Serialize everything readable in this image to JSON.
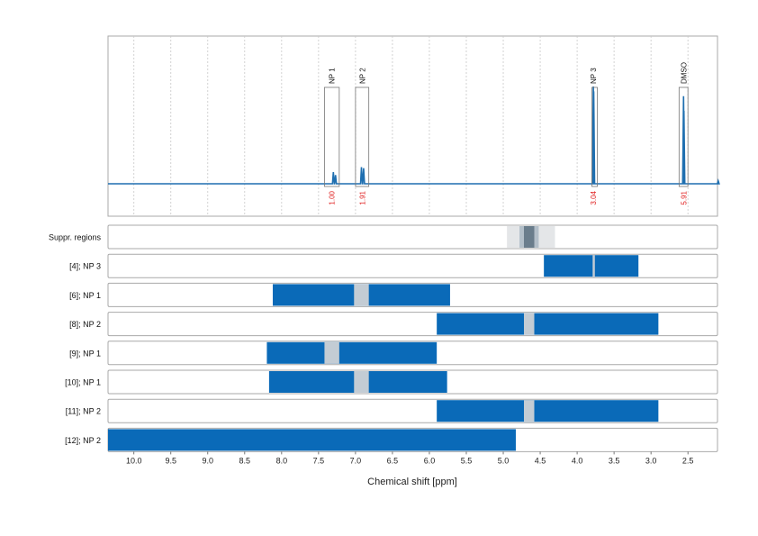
{
  "chart_data": {
    "type": "line",
    "x_axis": {
      "label": "Chemical shift [ppm]",
      "range": [
        10.35,
        2.1
      ],
      "reversed": true,
      "ticks": [
        "10.0",
        "9.5",
        "9.0",
        "8.5",
        "8.0",
        "7.5",
        "7.0",
        "6.5",
        "6.0",
        "5.5",
        "5.0",
        "4.5",
        "4.0",
        "3.5",
        "3.0",
        "2.5"
      ],
      "grid": "dotted vertical"
    },
    "spectrum": {
      "color": "#1f6fb0",
      "baseline": 0.0,
      "peaks": [
        {
          "x": 7.3,
          "height": 0.12
        },
        {
          "x": 7.27,
          "height": 0.09
        },
        {
          "x": 6.92,
          "height": 0.17
        },
        {
          "x": 6.89,
          "height": 0.16
        },
        {
          "x": 3.78,
          "height": 1.0
        },
        {
          "x": 3.775,
          "height": 0.95
        },
        {
          "x": 2.56,
          "height": 0.9
        },
        {
          "x": 2.555,
          "height": 0.75
        },
        {
          "x": 2.09,
          "height": 0.03
        }
      ]
    },
    "annotations": [
      {
        "label": "NP 1",
        "x_from": 7.42,
        "x_to": 7.22,
        "integral": "1.00"
      },
      {
        "label": "NP 2",
        "x_from": 7.0,
        "x_to": 6.82,
        "integral": "1.91"
      },
      {
        "label": "NP 3",
        "x_from": 3.8,
        "x_to": 3.76,
        "integral": "3.04"
      },
      {
        "label": "DMSO",
        "x_from": 2.62,
        "x_to": 2.5,
        "integral": "5.91"
      }
    ],
    "region_rows": [
      {
        "label": "Suppr. regions",
        "type": "suppression",
        "bands": [
          {
            "from": 4.95,
            "to": 4.3,
            "shade": "#e4e6e8"
          },
          {
            "from": 4.78,
            "to": 4.52,
            "shade": "#b3bfc9"
          },
          {
            "from": 4.72,
            "to": 4.58,
            "shade": "#6a7d8c"
          }
        ]
      },
      {
        "label": "[4]; NP 3",
        "segments": [
          [
            4.45,
            3.17
          ]
        ],
        "gaps": [
          [
            3.79,
            3.76
          ]
        ]
      },
      {
        "label": "[6]; NP 1",
        "segments": [
          [
            8.12,
            5.72
          ]
        ],
        "gaps": [
          [
            7.02,
            6.82
          ]
        ]
      },
      {
        "label": "[8]; NP 2",
        "segments": [
          [
            5.9,
            2.9
          ]
        ],
        "gaps": [
          [
            4.72,
            4.58
          ]
        ]
      },
      {
        "label": "[9]; NP 1",
        "segments": [
          [
            8.2,
            5.9
          ]
        ],
        "gaps": [
          [
            7.42,
            7.22
          ]
        ]
      },
      {
        "label": "[10]; NP 1",
        "segments": [
          [
            8.17,
            5.76
          ]
        ],
        "gaps": [
          [
            7.02,
            6.82
          ]
        ]
      },
      {
        "label": "[11]; NP 2",
        "segments": [
          [
            5.9,
            2.9
          ]
        ],
        "gaps": [
          [
            4.72,
            4.58
          ]
        ]
      },
      {
        "label": "[12]; NP 2",
        "segments": [
          [
            10.35,
            4.83
          ]
        ],
        "gaps": []
      }
    ],
    "colors": {
      "segment": "#0a6ab8",
      "gap": "#c3ccd4",
      "integral_text": "#e02020",
      "frame": "#a9a9a9",
      "grid": "#c8c8c8"
    }
  }
}
